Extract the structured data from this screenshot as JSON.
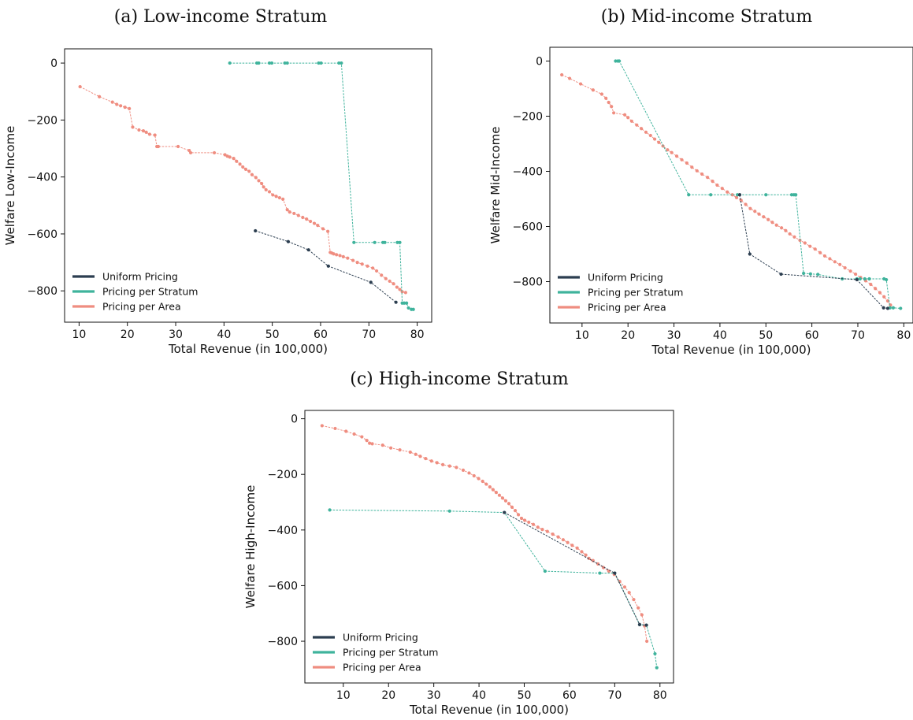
{
  "figure": {
    "colors": {
      "uniform": "#2c3e50",
      "stratum": "#3fb39c",
      "area": "#ef8d80"
    }
  },
  "chart_data": [
    {
      "type": "line",
      "title": "(a) Low-income Stratum",
      "xlabel": "Total Revenue (in 100,000)",
      "ylabel": "Welfare Low-Income",
      "xlim": [
        7,
        83
      ],
      "ylim": [
        -910,
        50
      ],
      "xticks": [
        10,
        20,
        30,
        40,
        50,
        60,
        70,
        80
      ],
      "yticks": [
        0,
        -200,
        -400,
        -600,
        -800
      ],
      "xtick_labels": [
        "10",
        "20",
        "30",
        "40",
        "50",
        "60",
        "70",
        "80"
      ],
      "ytick_labels": [
        "0",
        "−200",
        "−400",
        "−600",
        "−800"
      ],
      "legend": {
        "position": "lower-left",
        "entries": [
          "Uniform Pricing",
          "Pricing per Stratum",
          "Pricing per Area"
        ]
      },
      "series": [
        {
          "name": "Uniform Pricing",
          "color_key": "uniform",
          "x": [
            46.5,
            53.3,
            57.5,
            61.6,
            70.4,
            75.6
          ],
          "y": [
            -589,
            -627,
            -656,
            -713,
            -770,
            -840
          ]
        },
        {
          "name": "Pricing per Stratum",
          "color_key": "stratum",
          "x": [
            41.2,
            46.8,
            47.2,
            49.4,
            49.9,
            52.6,
            53.1,
            59.6,
            60.1,
            63.8,
            64.3,
            66.9,
            71.2,
            72.9,
            73.3,
            75.9,
            76.4,
            76.9,
            77.3,
            77.8,
            78.2,
            78.8,
            79.2
          ],
          "y": [
            0,
            0,
            0,
            0,
            0,
            0,
            0,
            0,
            0,
            0,
            0,
            -630,
            -630,
            -630,
            -630,
            -630,
            -630,
            -843,
            -843,
            -843,
            -860,
            -865,
            -865
          ]
        },
        {
          "name": "Pricing per Area",
          "color_key": "area",
          "x": [
            10.2,
            14.2,
            16.9,
            17.8,
            18.6,
            19.5,
            20.4,
            21.1,
            22.4,
            23.3,
            23.9,
            24.6,
            25.7,
            26.1,
            26.4,
            30.5,
            32.8,
            33.1,
            38.0,
            40.2,
            40.7,
            41.2,
            42.0,
            42.6,
            43.3,
            43.9,
            44.5,
            45.2,
            45.8,
            46.6,
            47.2,
            47.8,
            48.2,
            48.7,
            49.4,
            50.1,
            50.8,
            51.5,
            52.2,
            53.1,
            53.6,
            54.5,
            55.4,
            56.3,
            57.1,
            57.9,
            58.7,
            59.4,
            60.5,
            61.5,
            62.0,
            62.3,
            62.7,
            63.3,
            64.0,
            64.7,
            65.6,
            66.7,
            67.6,
            68.6,
            69.7,
            70.8,
            71.6,
            72.6,
            73.5,
            74.3,
            75.1,
            75.8,
            76.4,
            76.9,
            77.6
          ],
          "y": [
            -83,
            -118,
            -137,
            -145,
            -150,
            -155,
            -160,
            -225,
            -235,
            -238,
            -243,
            -250,
            -253,
            -293,
            -293,
            -293,
            -307,
            -315,
            -315,
            -322,
            -327,
            -330,
            -335,
            -345,
            -355,
            -365,
            -373,
            -380,
            -392,
            -402,
            -413,
            -423,
            -435,
            -445,
            -452,
            -463,
            -468,
            -473,
            -478,
            -515,
            -523,
            -528,
            -535,
            -542,
            -548,
            -556,
            -563,
            -570,
            -582,
            -591,
            -665,
            -667,
            -670,
            -673,
            -676,
            -680,
            -685,
            -693,
            -700,
            -706,
            -713,
            -720,
            -730,
            -745,
            -757,
            -766,
            -775,
            -787,
            -795,
            -803,
            -806
          ]
        }
      ]
    },
    {
      "type": "line",
      "title": "(b) Mid-income Stratum",
      "xlabel": "Total Revenue (in 100,000)",
      "ylabel": "Welfare Mid-Income",
      "xlim": [
        3,
        82
      ],
      "ylim": [
        -950,
        50
      ],
      "xticks": [
        10,
        20,
        30,
        40,
        50,
        60,
        70,
        80
      ],
      "yticks": [
        0,
        -200,
        -400,
        -600,
        -800
      ],
      "xtick_labels": [
        "10",
        "20",
        "30",
        "40",
        "50",
        "60",
        "70",
        "80"
      ],
      "ytick_labels": [
        "0",
        "−200",
        "−400",
        "−600",
        "−800"
      ],
      "legend": {
        "position": "lower-left",
        "entries": [
          "Uniform Pricing",
          "Pricing per Stratum",
          "Pricing per Area"
        ]
      },
      "series": [
        {
          "name": "Uniform Pricing",
          "color_key": "uniform",
          "x": [
            44.3,
            46.5,
            53.3,
            69.8,
            75.6,
            76.5
          ],
          "y": [
            -485,
            -700,
            -773,
            -793,
            -895,
            -897
          ]
        },
        {
          "name": "Pricing per Stratum",
          "color_key": "stratum",
          "x": [
            17.3,
            17.8,
            18.1,
            33.2,
            38.0,
            43.8,
            44.3,
            50.0,
            55.6,
            56.1,
            56.5,
            58.2,
            59.7,
            61.3,
            66.6,
            69.8,
            70.5,
            71.5,
            72.5,
            75.7,
            76.2,
            77.0,
            77.7,
            79.3
          ],
          "y": [
            0,
            0,
            0,
            -485,
            -485,
            -485,
            -485,
            -485,
            -485,
            -485,
            -485,
            -770,
            -772,
            -774,
            -790,
            -790,
            -790,
            -790,
            -790,
            -790,
            -793,
            -895,
            -895,
            -897
          ]
        },
        {
          "name": "Pricing per Area",
          "color_key": "area",
          "x": [
            5.6,
            7.3,
            9.7,
            12.4,
            14.3,
            15.2,
            15.8,
            16.4,
            16.9,
            19.3,
            20.0,
            20.8,
            21.9,
            22.9,
            23.9,
            24.9,
            25.8,
            26.7,
            27.6,
            28.6,
            29.5,
            30.6,
            31.7,
            32.8,
            33.9,
            35.0,
            36.1,
            37.3,
            38.4,
            39.4,
            40.5,
            41.6,
            42.7,
            43.6,
            44.6,
            45.6,
            46.6,
            47.6,
            48.5,
            49.5,
            50.5,
            51.4,
            52.3,
            53.4,
            54.3,
            55.2,
            56.2,
            57.4,
            58.5,
            59.6,
            60.7,
            61.8,
            62.8,
            63.9,
            65.0,
            66.1,
            67.2,
            68.4,
            69.5,
            70.6,
            71.7,
            72.8,
            73.8,
            74.8,
            75.7,
            76.5,
            77.1
          ],
          "y": [
            -50,
            -63,
            -83,
            -105,
            -120,
            -135,
            -150,
            -165,
            -188,
            -195,
            -205,
            -218,
            -232,
            -245,
            -258,
            -270,
            -283,
            -295,
            -308,
            -322,
            -332,
            -345,
            -358,
            -370,
            -385,
            -398,
            -410,
            -422,
            -436,
            -450,
            -462,
            -475,
            -485,
            -495,
            -505,
            -520,
            -535,
            -545,
            -555,
            -565,
            -575,
            -585,
            -595,
            -605,
            -615,
            -627,
            -638,
            -650,
            -660,
            -672,
            -682,
            -695,
            -707,
            -717,
            -728,
            -738,
            -750,
            -762,
            -773,
            -785,
            -797,
            -810,
            -825,
            -840,
            -855,
            -870,
            -885
          ]
        }
      ]
    },
    {
      "type": "line",
      "title": "(c) High-income Stratum",
      "xlabel": "Total Revenue (in 100,000)",
      "ylabel": "Welfare High-Income",
      "xlim": [
        1.5,
        83
      ],
      "ylim": [
        -950,
        30
      ],
      "xticks": [
        10,
        20,
        30,
        40,
        50,
        60,
        70,
        80
      ],
      "yticks": [
        0,
        -200,
        -400,
        -600,
        -800
      ],
      "xtick_labels": [
        "10",
        "20",
        "30",
        "40",
        "50",
        "60",
        "70",
        "80"
      ],
      "ytick_labels": [
        "0",
        "−200",
        "−400",
        "−600",
        "−800"
      ],
      "legend": {
        "position": "lower-left",
        "entries": [
          "Uniform Pricing",
          "Pricing per Stratum",
          "Pricing per Area"
        ]
      },
      "series": [
        {
          "name": "Uniform Pricing",
          "color_key": "uniform",
          "x": [
            45.6,
            70.0,
            75.5,
            77.0
          ],
          "y": [
            -337,
            -555,
            -740,
            -742
          ]
        },
        {
          "name": "Pricing per Stratum",
          "color_key": "stratum",
          "x": [
            7.0,
            33.5,
            45.6,
            54.6,
            66.7,
            70.0,
            75.5,
            77.0,
            78.9,
            79.3
          ],
          "y": [
            -328,
            -332,
            -337,
            -548,
            -555,
            -555,
            -740,
            -742,
            -845,
            -895
          ]
        },
        {
          "name": "Pricing per Area",
          "color_key": "area",
          "x": [
            5.3,
            8.2,
            10.6,
            12.4,
            14.1,
            15.2,
            15.8,
            16.4,
            18.7,
            20.5,
            22.5,
            24.8,
            26.0,
            27.0,
            28.2,
            29.5,
            30.7,
            32.0,
            33.5,
            35.0,
            36.5,
            37.8,
            38.9,
            39.9,
            40.8,
            41.6,
            42.4,
            43.1,
            43.8,
            44.5,
            45.2,
            45.9,
            46.6,
            47.3,
            48.0,
            48.7,
            49.4,
            50.1,
            51.0,
            52.0,
            53.0,
            54.0,
            55.1,
            56.3,
            57.5,
            58.6,
            59.6,
            60.6,
            61.7,
            62.7,
            63.6,
            64.3,
            65.2,
            66.3,
            67.5,
            68.7,
            69.9,
            71.1,
            72.2,
            73.2,
            74.2,
            75.2,
            76.0,
            76.6,
            77.1
          ],
          "y": [
            -25,
            -35,
            -45,
            -55,
            -65,
            -78,
            -88,
            -90,
            -95,
            -105,
            -112,
            -120,
            -128,
            -135,
            -143,
            -152,
            -158,
            -165,
            -170,
            -175,
            -185,
            -195,
            -205,
            -215,
            -225,
            -235,
            -245,
            -255,
            -265,
            -275,
            -285,
            -295,
            -305,
            -318,
            -330,
            -345,
            -358,
            -365,
            -372,
            -380,
            -390,
            -398,
            -405,
            -415,
            -425,
            -435,
            -445,
            -455,
            -465,
            -478,
            -490,
            -502,
            -510,
            -522,
            -535,
            -548,
            -560,
            -585,
            -605,
            -625,
            -650,
            -680,
            -705,
            -745,
            -800
          ]
        }
      ]
    }
  ]
}
